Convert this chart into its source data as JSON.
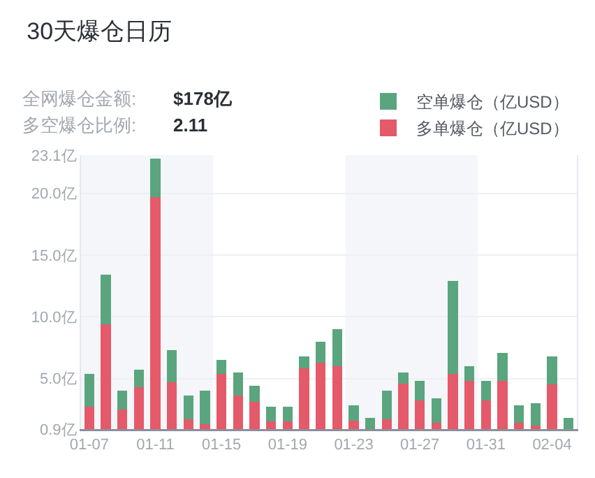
{
  "chart_data": {
    "type": "bar",
    "title": "30天爆仓日历",
    "stacked": true,
    "annotations": [
      "全网爆仓金额:",
      "$178亿",
      "多空爆仓比例:",
      "2.11"
    ],
    "categories": [
      "01-07",
      null,
      null,
      null,
      "01-11",
      null,
      null,
      null,
      "01-15",
      null,
      null,
      null,
      "01-19",
      null,
      null,
      null,
      "01-23",
      null,
      null,
      null,
      "01-27",
      null,
      null,
      null,
      "01-31",
      null,
      null,
      null,
      "02-04",
      null
    ],
    "series": [
      {
        "name": "多单爆仓（亿USD）",
        "color": "#e45a6a",
        "values": [
          2.7,
          9.4,
          2.5,
          4.3,
          19.7,
          4.7,
          1.7,
          1.3,
          5.4,
          3.6,
          3.1,
          1.5,
          1.5,
          5.8,
          6.3,
          6.0,
          1.6,
          null,
          1.7,
          4.6,
          3.2,
          1.4,
          5.4,
          4.8,
          3.2,
          4.8,
          1.4,
          1.2,
          4.5,
          null
        ]
      },
      {
        "name": "空单爆仓（亿USD）",
        "color": "#5aa57e",
        "values": [
          2.7,
          4.0,
          1.5,
          1.4,
          3.1,
          2.6,
          1.9,
          2.7,
          1.1,
          1.9,
          1.3,
          1.2,
          1.2,
          1.0,
          1.7,
          3.0,
          1.2,
          1.8,
          2.3,
          0.9,
          1.6,
          2.0,
          7.5,
          1.2,
          1.6,
          2.3,
          1.4,
          1.8,
          2.3,
          1.8
        ]
      }
    ],
    "ylim": [
      0.9,
      23.1
    ],
    "yticks": [
      {
        "value": 0.9,
        "label": "0.9亿"
      },
      {
        "value": 5,
        "label": "5.0亿"
      },
      {
        "value": 10,
        "label": "10.0亿"
      },
      {
        "value": 15,
        "label": "15.0亿"
      },
      {
        "value": 20,
        "label": "20.0亿"
      },
      {
        "value": 23.1,
        "label": "23.1亿"
      }
    ],
    "grid": "y",
    "legend": "top right"
  }
}
